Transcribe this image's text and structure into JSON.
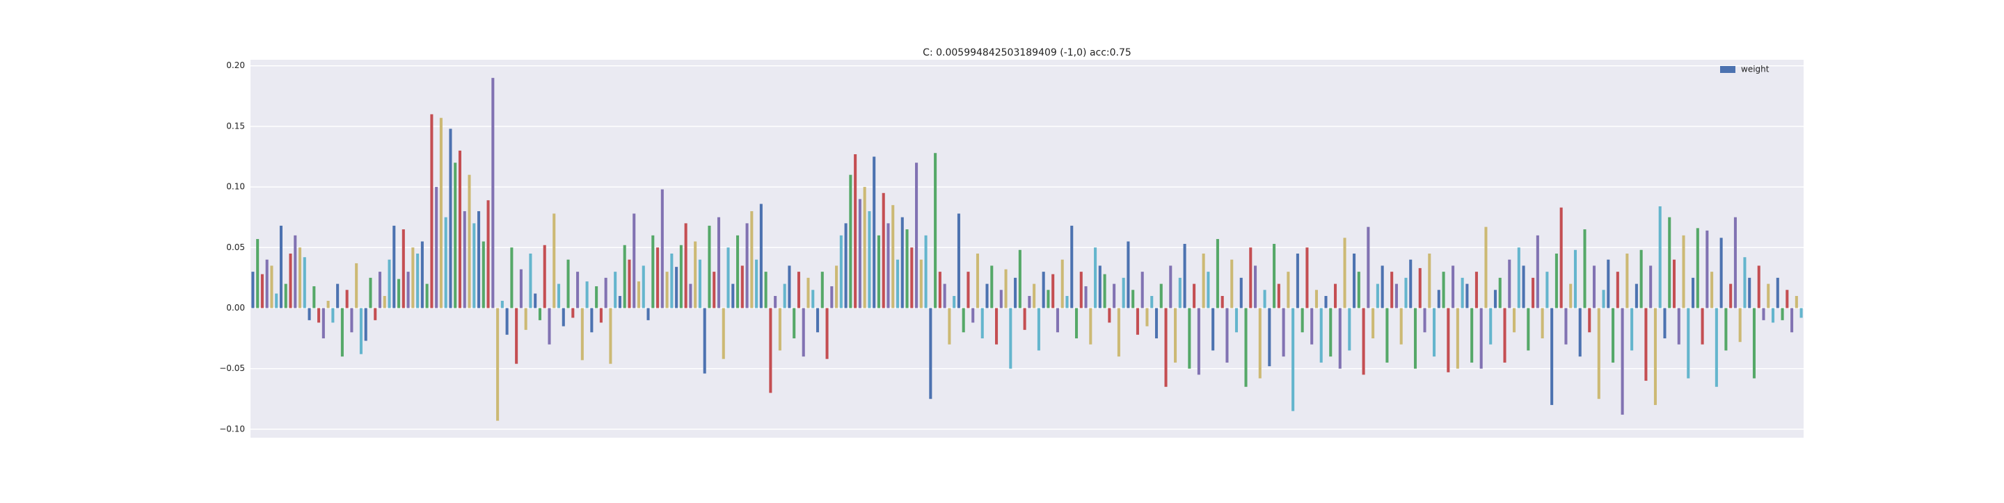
{
  "chart_data": {
    "type": "bar",
    "title": "C: 0.005994842503189409 (-1,0) acc:0.75",
    "series": [
      {
        "name": "weight",
        "color": "#4c72b0",
        "values": [
          0.03,
          0.057,
          0.028,
          0.04,
          0.035,
          0.012,
          0.068,
          0.02,
          0.045,
          0.06,
          0.05,
          0.042,
          -0.01,
          0.018,
          -0.012,
          -0.025,
          0.006,
          -0.012,
          0.02,
          -0.04,
          0.015,
          -0.02,
          0.037,
          -0.038,
          -0.027,
          0.025,
          -0.01,
          0.03,
          0.01,
          0.04,
          0.068,
          0.024,
          0.065,
          0.03,
          0.05,
          0.045,
          0.055,
          0.02,
          0.16,
          0.1,
          0.157,
          0.075,
          0.148,
          0.12,
          0.13,
          0.08,
          0.11,
          0.07,
          0.08,
          0.055,
          0.089,
          0.19,
          -0.093,
          0.006,
          -0.022,
          0.05,
          -0.046,
          0.032,
          -0.018,
          0.045,
          0.012,
          -0.01,
          0.052,
          -0.03,
          0.078,
          0.02,
          -0.015,
          0.04,
          -0.008,
          0.03,
          -0.043,
          0.022,
          -0.02,
          0.018,
          -0.012,
          0.025,
          -0.046,
          0.03,
          0.01,
          0.052,
          0.04,
          0.078,
          0.022,
          0.035,
          -0.01,
          0.06,
          0.05,
          0.098,
          0.03,
          0.045,
          0.034,
          0.052,
          0.07,
          0.02,
          0.055,
          0.04,
          -0.054,
          0.068,
          0.03,
          0.075,
          -0.042,
          0.05,
          0.02,
          0.06,
          0.035,
          0.07,
          0.08,
          0.04,
          0.086,
          0.03,
          -0.07,
          0.01,
          -0.035,
          0.02,
          0.035,
          -0.025,
          0.03,
          -0.04,
          0.025,
          0.015,
          -0.02,
          0.03,
          -0.042,
          0.018,
          0.035,
          0.06,
          0.07,
          0.11,
          0.127,
          0.09,
          0.1,
          0.08,
          0.125,
          0.06,
          0.095,
          0.07,
          0.085,
          0.04,
          0.075,
          0.065,
          0.05,
          0.12,
          0.04,
          0.06,
          -0.075,
          0.128,
          0.03,
          0.02,
          -0.03,
          0.01,
          0.078,
          -0.02,
          0.03,
          -0.012,
          0.045,
          -0.025,
          0.02,
          0.035,
          -0.03,
          0.015,
          0.032,
          -0.05,
          0.025,
          0.048,
          -0.018,
          0.01,
          0.02,
          -0.035,
          0.03,
          0.015,
          0.028,
          -0.02,
          0.04,
          0.01,
          0.068,
          -0.025,
          0.03,
          0.018,
          -0.03,
          0.05,
          0.035,
          0.028,
          -0.012,
          0.02,
          -0.04,
          0.025,
          0.055,
          0.015,
          -0.022,
          0.03,
          -0.015,
          0.01,
          -0.025,
          0.02,
          -0.065,
          0.035,
          -0.045,
          0.025,
          0.053,
          -0.05,
          0.02,
          -0.055,
          0.045,
          0.03,
          -0.035,
          0.057,
          0.01,
          -0.045,
          0.04,
          -0.02,
          0.025,
          -0.065,
          0.05,
          0.035,
          -0.058,
          0.015,
          -0.048,
          0.053,
          0.02,
          -0.04,
          0.03,
          -0.085,
          0.045,
          -0.02,
          0.05,
          -0.03,
          0.015,
          -0.045,
          0.01,
          -0.04,
          0.02,
          -0.05,
          0.058,
          -0.035,
          0.045,
          0.03,
          -0.055,
          0.067,
          -0.025,
          0.02,
          0.035,
          -0.045,
          0.03,
          0.02,
          -0.03,
          0.025,
          0.04,
          -0.05,
          0.033,
          -0.02,
          0.045,
          -0.04,
          0.015,
          0.03,
          -0.053,
          0.035,
          -0.05,
          0.025,
          0.02,
          -0.045,
          0.03,
          -0.05,
          0.067,
          -0.03,
          0.015,
          0.025,
          -0.045,
          0.04,
          -0.02,
          0.05,
          0.035,
          -0.035,
          0.025,
          0.06,
          -0.025,
          0.03,
          -0.08,
          0.045,
          0.083,
          -0.03,
          0.02,
          0.048,
          -0.04,
          0.065,
          -0.02,
          0.035,
          -0.075,
          0.015,
          0.04,
          -0.045,
          0.03,
          -0.088,
          0.045,
          -0.035,
          0.02,
          0.048,
          -0.06,
          0.035,
          -0.08,
          0.084,
          -0.025,
          0.075,
          0.04,
          -0.03,
          0.06,
          -0.058,
          0.025,
          0.066,
          -0.03,
          0.064,
          0.03,
          -0.065,
          0.058,
          -0.035,
          0.02,
          0.075,
          -0.028,
          0.042,
          0.025,
          -0.058,
          0.035,
          -0.01,
          0.02,
          -0.012,
          0.025,
          -0.01,
          0.015,
          -0.02,
          0.01,
          -0.008
        ]
      }
    ],
    "bar_colors": [
      "#4c72b0",
      "#55a868",
      "#c44e52",
      "#8172b2",
      "#ccb974",
      "#64b5cd"
    ],
    "ylim": [
      -0.107,
      0.205
    ],
    "yticks": [
      {
        "value": -0.1,
        "label": "−0.10"
      },
      {
        "value": -0.05,
        "label": "−0.05"
      },
      {
        "value": 0,
        "label": "0.00"
      },
      {
        "value": 0.05,
        "label": "0.05"
      },
      {
        "value": 0.1,
        "label": "0.10"
      },
      {
        "value": 0.15,
        "label": "0.15"
      },
      {
        "value": 0.2,
        "label": "0.20"
      }
    ],
    "grid": true,
    "legend": "upper right"
  }
}
